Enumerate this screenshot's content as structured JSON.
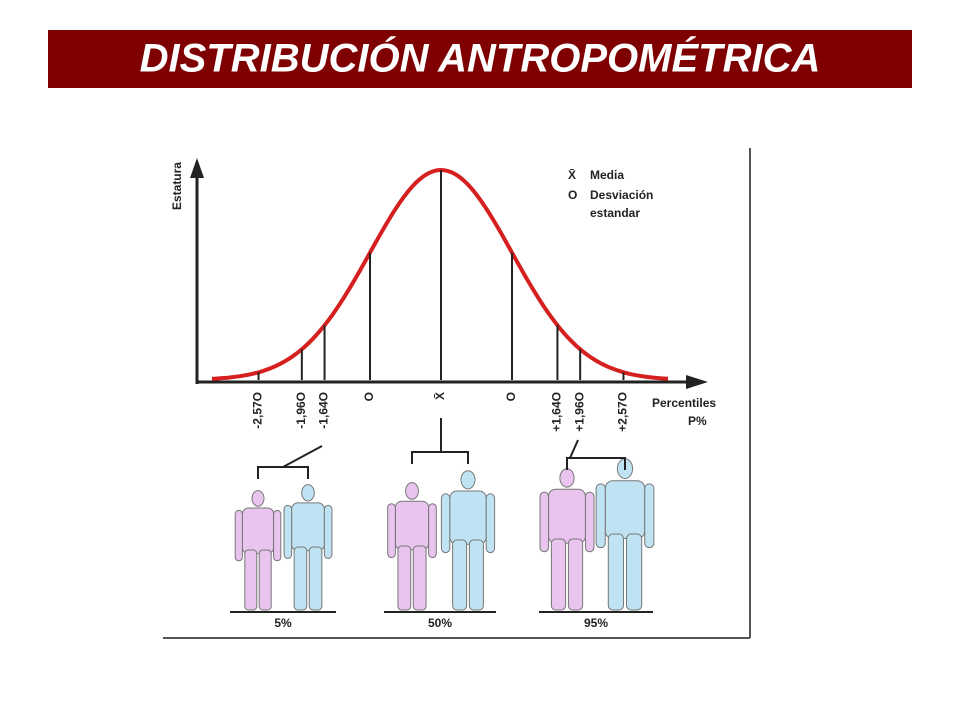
{
  "title": "DISTRIBUCIÓN ANTROPOMÉTRICA",
  "diagram": {
    "y_axis_label": "Estatura",
    "x_axis_label": [
      "Percentiles",
      "P%"
    ],
    "legend": [
      {
        "symbol": "X̄",
        "label": [
          "Media"
        ]
      },
      {
        "symbol": "O",
        "label": [
          "Desviación",
          "estandar"
        ]
      }
    ],
    "ticks": [
      "-2,57O",
      "-1,96O",
      "-1,64O",
      "O",
      "X̄",
      "O",
      "+1,64O",
      "+1,96O",
      "+2,57O"
    ],
    "groups": [
      "5%",
      "50%",
      "95%"
    ]
  }
}
